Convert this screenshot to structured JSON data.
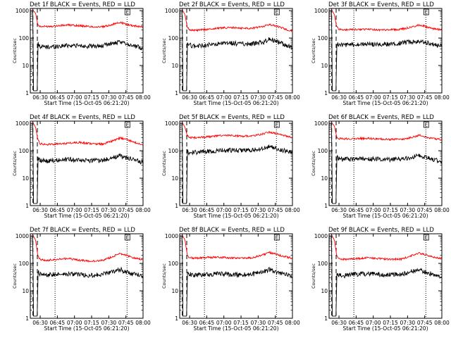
{
  "chart_data": [
    {
      "type": "line",
      "title": "Det 1f BLACK = Events, RED = LLD",
      "xlabel": "Start Time (15-Oct-05 06:21:20)",
      "ylabel": "Counts/sec",
      "x_ticks": [
        "06:30",
        "06:45",
        "07:00",
        "07:15",
        "07:30",
        "07:45",
        "08:00"
      ],
      "y_ticks": [
        "1",
        "10",
        "100",
        "1000"
      ],
      "x_range_min": [
        21.333,
        120
      ],
      "y_range": [
        1,
        1200
      ],
      "y_scale": "log",
      "grid": false,
      "annotation": "E",
      "series": [
        {
          "color": "#ff0000",
          "x_min": [
            21.333,
            24,
            26,
            28,
            30,
            35,
            45,
            55,
            65,
            75,
            85,
            95,
            100,
            105,
            110,
            115,
            120
          ],
          "y": [
            1000,
            1000,
            800,
            300,
            260,
            265,
            280,
            300,
            280,
            260,
            255,
            330,
            370,
            320,
            290,
            270,
            260
          ]
        },
        {
          "color": "#000000",
          "x_min": [
            21.333,
            23.6,
            24,
            27.5,
            28,
            30,
            35,
            45,
            55,
            65,
            75,
            85,
            90,
            95,
            100,
            105,
            110,
            115,
            120
          ],
          "y": [
            1000,
            1000,
            1.2,
            1.2,
            60,
            50,
            47,
            50,
            55,
            52,
            50,
            52,
            62,
            65,
            68,
            65,
            55,
            48,
            42
          ]
        }
      ]
    },
    {
      "type": "line",
      "title": "Det 2f BLACK = Events, RED = LLD",
      "xlabel": "Start Time (15-Oct-05 06:21:20)",
      "ylabel": "Counts/sec",
      "x_ticks": [
        "06:30",
        "06:45",
        "07:00",
        "07:15",
        "07:30",
        "07:45",
        "08:00"
      ],
      "y_ticks": [
        "1",
        "10",
        "100",
        "1000"
      ],
      "x_range_min": [
        21.333,
        120
      ],
      "y_range": [
        1,
        1200
      ],
      "y_scale": "log",
      "grid": false,
      "annotation": "E",
      "series": [
        {
          "color": "#ff0000",
          "x_min": [
            21.333,
            24,
            26,
            28,
            30,
            35,
            45,
            55,
            65,
            75,
            85,
            95,
            100,
            105,
            110,
            115,
            120
          ],
          "y": [
            1000,
            1000,
            700,
            250,
            200,
            190,
            205,
            230,
            240,
            230,
            230,
            270,
            310,
            280,
            240,
            200,
            180
          ]
        },
        {
          "color": "#000000",
          "x_min": [
            21.333,
            23.6,
            24,
            27.5,
            28,
            30,
            35,
            45,
            55,
            65,
            75,
            85,
            95,
            100,
            105,
            110,
            115,
            120
          ],
          "y": [
            1000,
            1000,
            1.2,
            1.2,
            70,
            55,
            50,
            55,
            60,
            65,
            62,
            62,
            70,
            95,
            80,
            65,
            55,
            45
          ]
        }
      ]
    },
    {
      "type": "line",
      "title": "Det 3f BLACK = Events, RED = LLD",
      "xlabel": "Start Time (15-Oct-05 06:21:20)",
      "ylabel": "Counts/sec",
      "x_ticks": [
        "06:30",
        "06:45",
        "07:00",
        "07:15",
        "07:30",
        "07:45",
        "08:00"
      ],
      "y_ticks": [
        "1",
        "10",
        "100",
        "1000"
      ],
      "x_range_min": [
        21.333,
        120
      ],
      "y_range": [
        1,
        1200
      ],
      "y_scale": "log",
      "grid": false,
      "annotation": "E",
      "series": [
        {
          "color": "#ff0000",
          "x_min": [
            21.333,
            24,
            26,
            28,
            30,
            35,
            45,
            55,
            65,
            75,
            85,
            95,
            100,
            105,
            110,
            115,
            120
          ],
          "y": [
            1000,
            1000,
            700,
            250,
            210,
            200,
            205,
            210,
            200,
            200,
            210,
            260,
            300,
            270,
            230,
            210,
            200
          ]
        },
        {
          "color": "#000000",
          "x_min": [
            21.333,
            23.6,
            24,
            27.5,
            28,
            30,
            35,
            45,
            55,
            65,
            75,
            85,
            95,
            100,
            105,
            110,
            115,
            120
          ],
          "y": [
            1000,
            1000,
            1.2,
            1.2,
            70,
            55,
            55,
            57,
            60,
            58,
            60,
            65,
            75,
            80,
            70,
            62,
            55,
            50
          ]
        }
      ]
    },
    {
      "type": "line",
      "title": "Det 4f BLACK = Events, RED = LLD",
      "xlabel": "Start Time (15-Oct-05 06:21:20)",
      "ylabel": "Counts/sec",
      "x_ticks": [
        "06:30",
        "06:45",
        "07:00",
        "07:15",
        "07:30",
        "07:45",
        "08:00"
      ],
      "y_ticks": [
        "1",
        "10",
        "100",
        "1000"
      ],
      "x_range_min": [
        21.333,
        120
      ],
      "y_range": [
        1,
        1200
      ],
      "y_scale": "log",
      "grid": false,
      "annotation": "E",
      "series": [
        {
          "color": "#ff0000",
          "x_min": [
            21.333,
            24,
            26,
            28,
            30,
            35,
            45,
            55,
            65,
            75,
            85,
            95,
            100,
            105,
            110,
            115,
            120
          ],
          "y": [
            1000,
            1000,
            700,
            250,
            180,
            170,
            175,
            190,
            200,
            180,
            175,
            240,
            290,
            260,
            220,
            190,
            170
          ]
        },
        {
          "color": "#000000",
          "x_min": [
            21.333,
            23.6,
            24,
            27.5,
            28,
            30,
            35,
            45,
            55,
            65,
            75,
            85,
            95,
            100,
            105,
            110,
            115,
            120
          ],
          "y": [
            1000,
            1000,
            1.2,
            1.2,
            55,
            45,
            42,
            45,
            48,
            46,
            44,
            45,
            55,
            65,
            55,
            48,
            42,
            38
          ]
        }
      ]
    },
    {
      "type": "line",
      "title": "Det 5f BLACK = Events, RED = LLD",
      "xlabel": "Start Time (15-Oct-05 06:21:20)",
      "ylabel": "Counts/sec",
      "x_ticks": [
        "06:30",
        "06:45",
        "07:00",
        "07:15",
        "07:30",
        "07:45",
        "08:00"
      ],
      "y_ticks": [
        "1",
        "10",
        "100",
        "1000"
      ],
      "x_range_min": [
        21.333,
        120
      ],
      "y_range": [
        1,
        1200
      ],
      "y_scale": "log",
      "grid": false,
      "annotation": "E",
      "series": [
        {
          "color": "#ff0000",
          "x_min": [
            21.333,
            24,
            26,
            28,
            30,
            35,
            45,
            55,
            65,
            75,
            85,
            95,
            100,
            105,
            110,
            115,
            120
          ],
          "y": [
            1000,
            1000,
            700,
            350,
            300,
            300,
            320,
            350,
            360,
            340,
            340,
            420,
            480,
            430,
            380,
            340,
            310
          ]
        },
        {
          "color": "#000000",
          "x_min": [
            21.333,
            23.6,
            24,
            27.5,
            28,
            30,
            35,
            45,
            55,
            65,
            75,
            85,
            95,
            100,
            105,
            110,
            115,
            120
          ],
          "y": [
            1000,
            1000,
            1.2,
            1.2,
            90,
            85,
            88,
            95,
            100,
            105,
            100,
            105,
            120,
            140,
            125,
            110,
            95,
            88
          ]
        }
      ]
    },
    {
      "type": "line",
      "title": "Det 6f BLACK = Events, RED = LLD",
      "xlabel": "Start Time (15-Oct-05 06:21:20)",
      "ylabel": "Counts/sec",
      "x_ticks": [
        "06:30",
        "06:45",
        "07:00",
        "07:15",
        "07:30",
        "07:45",
        "08:00"
      ],
      "y_ticks": [
        "1",
        "10",
        "100",
        "1000"
      ],
      "x_range_min": [
        21.333,
        120
      ],
      "y_range": [
        1,
        1200
      ],
      "y_scale": "log",
      "grid": false,
      "annotation": "E",
      "series": [
        {
          "color": "#ff0000",
          "x_min": [
            21.333,
            24,
            26,
            28,
            30,
            35,
            45,
            55,
            65,
            75,
            85,
            95,
            100,
            105,
            110,
            115,
            120
          ],
          "y": [
            1000,
            1000,
            800,
            320,
            280,
            270,
            280,
            280,
            270,
            260,
            260,
            320,
            370,
            330,
            290,
            270,
            250
          ]
        },
        {
          "color": "#000000",
          "x_min": [
            21.333,
            23.6,
            24,
            27.5,
            28,
            30,
            35,
            45,
            55,
            65,
            75,
            85,
            95,
            100,
            105,
            110,
            115,
            120
          ],
          "y": [
            1000,
            1000,
            1.2,
            1.2,
            60,
            50,
            48,
            50,
            52,
            50,
            48,
            50,
            60,
            70,
            58,
            50,
            45,
            40
          ]
        }
      ]
    },
    {
      "type": "line",
      "title": "Det 7f BLACK = Events, RED = LLD",
      "xlabel": "Start Time (15-Oct-05 06:21:20)",
      "ylabel": "Counts/sec",
      "x_ticks": [
        "06:30",
        "06:45",
        "07:00",
        "07:15",
        "07:30",
        "07:45",
        "08:00"
      ],
      "y_ticks": [
        "1",
        "10",
        "100",
        "1000"
      ],
      "x_range_min": [
        21.333,
        120
      ],
      "y_range": [
        1,
        1200
      ],
      "y_scale": "log",
      "grid": false,
      "annotation": "E",
      "series": [
        {
          "color": "#ff0000",
          "x_min": [
            21.333,
            24,
            26,
            28,
            30,
            35,
            45,
            55,
            65,
            75,
            85,
            95,
            100,
            105,
            110,
            115,
            120
          ],
          "y": [
            1000,
            1000,
            700,
            180,
            140,
            130,
            140,
            150,
            130,
            120,
            130,
            190,
            230,
            200,
            170,
            150,
            140
          ]
        },
        {
          "color": "#000000",
          "x_min": [
            21.333,
            23.6,
            24,
            27.5,
            28,
            30,
            35,
            45,
            55,
            65,
            75,
            85,
            95,
            100,
            105,
            110,
            115,
            120
          ],
          "y": [
            1000,
            1000,
            1.2,
            1.2,
            50,
            40,
            38,
            40,
            42,
            38,
            36,
            40,
            52,
            60,
            50,
            42,
            38,
            35
          ]
        }
      ]
    },
    {
      "type": "line",
      "title": "Det 8f BLACK = Events, RED = LLD",
      "xlabel": "Start Time (15-Oct-05 06:21:20)",
      "ylabel": "Counts/sec",
      "x_ticks": [
        "06:30",
        "06:45",
        "07:00",
        "07:15",
        "07:30",
        "07:45",
        "08:00"
      ],
      "y_ticks": [
        "1",
        "10",
        "100",
        "1000"
      ],
      "x_range_min": [
        21.333,
        120
      ],
      "y_range": [
        1,
        1200
      ],
      "y_scale": "log",
      "grid": false,
      "annotation": "E",
      "series": [
        {
          "color": "#ff0000",
          "x_min": [
            21.333,
            24,
            26,
            28,
            30,
            35,
            45,
            55,
            65,
            75,
            85,
            95,
            100,
            105,
            110,
            115,
            120
          ],
          "y": [
            1000,
            1000,
            700,
            200,
            160,
            155,
            165,
            170,
            160,
            155,
            160,
            210,
            250,
            220,
            190,
            170,
            155
          ]
        },
        {
          "color": "#000000",
          "x_min": [
            21.333,
            23.6,
            24,
            27.5,
            28,
            30,
            35,
            45,
            55,
            65,
            75,
            85,
            95,
            100,
            105,
            110,
            115,
            120
          ],
          "y": [
            1000,
            1000,
            1.2,
            1.2,
            45,
            40,
            38,
            40,
            42,
            40,
            38,
            40,
            52,
            60,
            50,
            42,
            38,
            34
          ]
        }
      ]
    },
    {
      "type": "line",
      "title": "Det 9f BLACK = Events, RED = LLD",
      "xlabel": "Start Time (15-Oct-05 06:21:20)",
      "ylabel": "Counts/sec",
      "x_ticks": [
        "06:30",
        "06:45",
        "07:00",
        "07:15",
        "07:30",
        "07:45",
        "08:00"
      ],
      "y_ticks": [
        "1",
        "10",
        "100",
        "1000"
      ],
      "x_range_min": [
        21.333,
        120
      ],
      "y_range": [
        1,
        1200
      ],
      "y_scale": "log",
      "grid": false,
      "annotation": "E",
      "series": [
        {
          "color": "#ff0000",
          "x_min": [
            21.333,
            24,
            26,
            28,
            30,
            35,
            45,
            55,
            65,
            75,
            85,
            95,
            100,
            105,
            110,
            115,
            120
          ],
          "y": [
            1000,
            1000,
            700,
            190,
            150,
            140,
            150,
            160,
            150,
            140,
            145,
            200,
            240,
            210,
            180,
            160,
            150
          ]
        },
        {
          "color": "#000000",
          "x_min": [
            21.333,
            23.6,
            24,
            27.5,
            28,
            30,
            35,
            45,
            55,
            65,
            75,
            85,
            95,
            100,
            105,
            110,
            115,
            120
          ],
          "y": [
            1000,
            1000,
            1.2,
            1.2,
            45,
            38,
            36,
            40,
            42,
            40,
            38,
            40,
            52,
            60,
            50,
            42,
            38,
            34
          ]
        }
      ]
    }
  ],
  "time_markers_min": {
    "dashed": [
      23.6,
      27.5
    ],
    "dotted": [
      43,
      106
    ]
  }
}
